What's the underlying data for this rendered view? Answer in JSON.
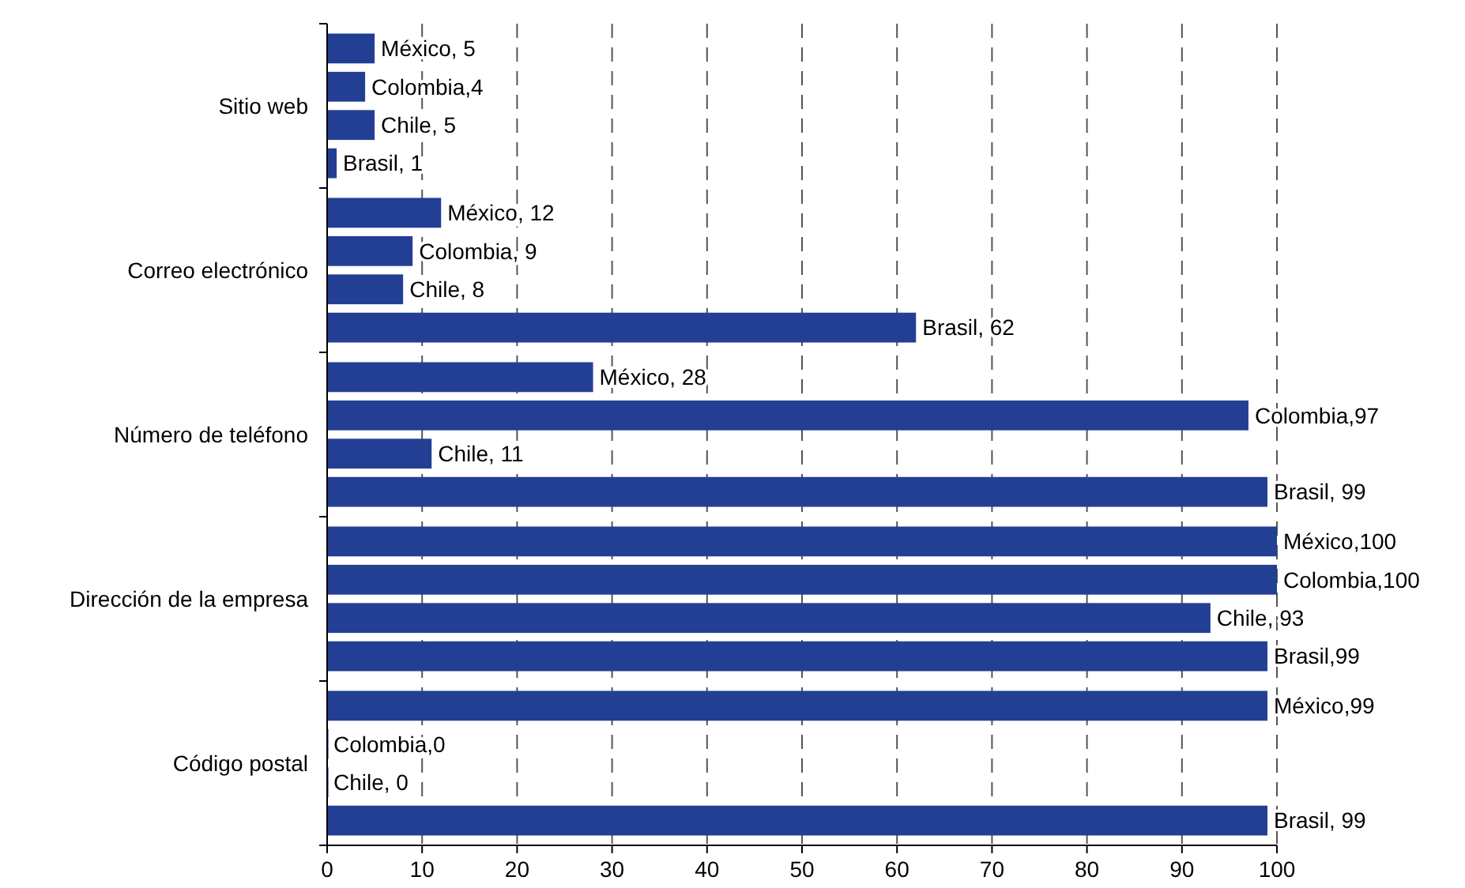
{
  "chart_data": {
    "type": "bar",
    "orientation": "horizontal",
    "categories": [
      "Sitio web",
      "Correo electrónico",
      "Número de teléfono",
      "Dirección de la empresa",
      "Código postal"
    ],
    "series": [
      {
        "color": "#233f94",
        "values": [
          5,
          12,
          28,
          100,
          99
        ],
        "value_labels": [
          "México, 5",
          "México, 12",
          "México, 28",
          "México,100",
          "México,99"
        ]
      },
      {
        "color": "#233f94",
        "values": [
          4,
          9,
          97,
          100,
          0
        ],
        "value_labels": [
          "Colombia,4",
          "Colombia, 9",
          "Colombia,97",
          "Colombia,100",
          "Colombia,0"
        ]
      },
      {
        "color": "#233f94",
        "values": [
          5,
          8,
          11,
          93,
          0
        ],
        "value_labels": [
          "Chile, 5",
          "Chile, 8",
          "Chile, 11",
          "Chile, 93",
          "Chile, 0"
        ]
      },
      {
        "color": "#233f94",
        "values": [
          1,
          62,
          99,
          99,
          99
        ],
        "value_labels": [
          "Brasil, 1",
          "Brasil, 62",
          "Brasil, 99",
          "Brasil,99",
          "Brasil, 99"
        ]
      }
    ],
    "xlim": [
      0,
      100
    ],
    "xticks": [
      0,
      10,
      20,
      30,
      40,
      50,
      60,
      70,
      80,
      90,
      100
    ],
    "grid": "x"
  }
}
